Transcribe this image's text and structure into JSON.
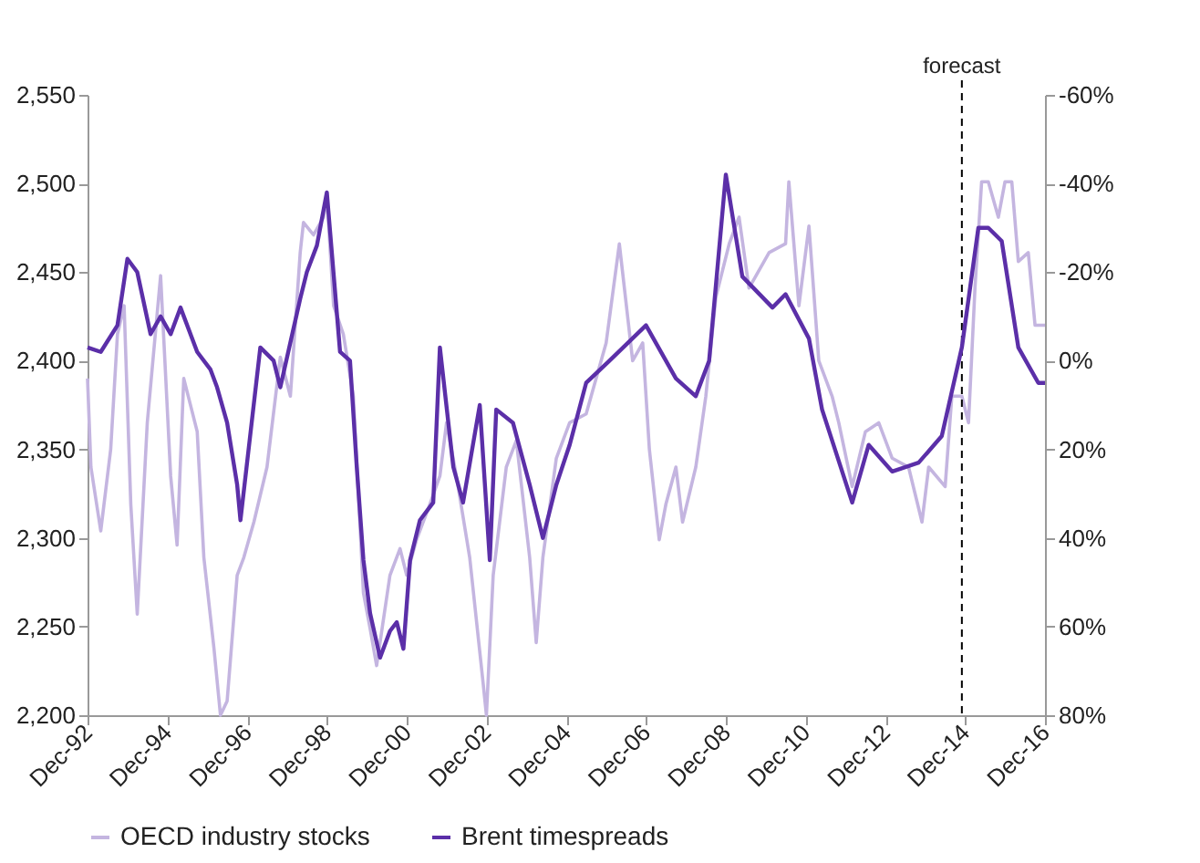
{
  "chart_data": {
    "type": "line",
    "xlim": [
      "1992-12",
      "2016-12"
    ],
    "xticks": [
      {
        "value": "1992-12",
        "label": "Dec-92"
      },
      {
        "value": "1994-12",
        "label": "Dec-94"
      },
      {
        "value": "1996-12",
        "label": "Dec-96"
      },
      {
        "value": "1998-12",
        "label": "Dec-98"
      },
      {
        "value": "2000-12",
        "label": "Dec-00"
      },
      {
        "value": "2002-12",
        "label": "Dec-02"
      },
      {
        "value": "2004-12",
        "label": "Dec-04"
      },
      {
        "value": "2006-12",
        "label": "Dec-06"
      },
      {
        "value": "2008-12",
        "label": "Dec-08"
      },
      {
        "value": "2010-12",
        "label": "Dec-10"
      },
      {
        "value": "2012-12",
        "label": "Dec-12"
      },
      {
        "value": "2014-12",
        "label": "Dec-14"
      },
      {
        "value": "2016-12",
        "label": "Dec-16"
      }
    ],
    "ylim": [
      2200,
      2550
    ],
    "yticks": [
      {
        "value": 2200,
        "label": "2,200"
      },
      {
        "value": 2250,
        "label": "2,250"
      },
      {
        "value": 2300,
        "label": "2,300"
      },
      {
        "value": 2350,
        "label": "2,350"
      },
      {
        "value": 2400,
        "label": "2,400"
      },
      {
        "value": 2450,
        "label": "2,450"
      },
      {
        "value": 2500,
        "label": "2,500"
      },
      {
        "value": 2550,
        "label": "2,550"
      }
    ],
    "y2lim": [
      80,
      -60
    ],
    "y2ticks": [
      {
        "value": -60,
        "label": "-60%"
      },
      {
        "value": -40,
        "label": "-40%"
      },
      {
        "value": -20,
        "label": "-20%"
      },
      {
        "value": 0,
        "label": "0%"
      },
      {
        "value": 20,
        "label": "20%"
      },
      {
        "value": 40,
        "label": "40%"
      },
      {
        "value": 60,
        "label": "60%"
      },
      {
        "value": 80,
        "label": "80%"
      }
    ],
    "grid": false,
    "legend": "bottom",
    "marker": "none",
    "line_style": "solid",
    "ref_lines": [
      {
        "axis": "x",
        "value": "2014-11",
        "label": "forecast",
        "color": "#000000",
        "line_style": "dashed"
      }
    ],
    "series": [
      {
        "name": "OECD industry stocks",
        "color": "#c4b5e0",
        "x": [
          "1992-12",
          "1993-01",
          "1993-04",
          "1993-07",
          "1993-09",
          "1993-11",
          "1994-01",
          "1994-03",
          "1994-06",
          "1994-10",
          "1995-01",
          "1995-03",
          "1995-05",
          "1995-09",
          "1995-11",
          "1996-02",
          "1996-04",
          "1996-06",
          "1996-09",
          "1996-11",
          "1997-02",
          "1997-06",
          "1997-10",
          "1998-01",
          "1998-04",
          "1998-05",
          "1998-08",
          "1998-11",
          "1998-12",
          "1999-02",
          "1999-05",
          "1999-08",
          "1999-11",
          "2000-01",
          "2000-03",
          "2000-07",
          "2000-10",
          "2000-12",
          "2001-03",
          "2001-07",
          "2001-10",
          "2001-12",
          "2002-03",
          "2002-07",
          "2002-11",
          "2002-12",
          "2003-02",
          "2003-06",
          "2003-09",
          "2004-01",
          "2004-03",
          "2004-05",
          "2004-09",
          "2005-01",
          "2005-06",
          "2005-12",
          "2006-04",
          "2006-08",
          "2006-11",
          "2007-01",
          "2007-04",
          "2007-06",
          "2007-09",
          "2007-11",
          "2008-03",
          "2008-06",
          "2008-09",
          "2009-01",
          "2009-04",
          "2009-07",
          "2010-01",
          "2010-06",
          "2010-07",
          "2010-10",
          "2011-01",
          "2011-04",
          "2011-08",
          "2011-10",
          "2012-02",
          "2012-06",
          "2012-10",
          "2013-02",
          "2013-07",
          "2013-11",
          "2014-01",
          "2014-06",
          "2014-08",
          "2014-11",
          "2015-01",
          "2015-03",
          "2015-05",
          "2015-07",
          "2015-10",
          "2015-12",
          "2016-02",
          "2016-04",
          "2016-07",
          "2016-09",
          "2016-12"
        ],
        "values": [
          2390,
          2340,
          2304,
          2350,
          2415,
          2431,
          2319,
          2257,
          2365,
          2448,
          2335,
          2296,
          2390,
          2360,
          2289,
          2238,
          2200,
          2208,
          2279,
          2289,
          2309,
          2340,
          2402,
          2380,
          2461,
          2478,
          2471,
          2481,
          2493,
          2431,
          2415,
          2380,
          2269,
          2249,
          2228,
          2279,
          2294,
          2279,
          2299,
          2319,
          2335,
          2365,
          2335,
          2289,
          2218,
          2200,
          2279,
          2340,
          2355,
          2289,
          2241,
          2289,
          2345,
          2365,
          2370,
          2410,
          2466,
          2400,
          2410,
          2350,
          2299,
          2319,
          2340,
          2309,
          2340,
          2380,
          2436,
          2466,
          2481,
          2441,
          2461,
          2466,
          2501,
          2431,
          2476,
          2400,
          2380,
          2365,
          2329,
          2360,
          2365,
          2345,
          2340,
          2309,
          2340,
          2329,
          2380,
          2380,
          2365,
          2441,
          2501,
          2501,
          2481,
          2501,
          2501,
          2456,
          2461,
          2420,
          2420
        ]
      },
      {
        "name": "Brent timespreads",
        "color": "#5b2fa8",
        "axis": "y2",
        "x": [
          "1992-12",
          "1993-04",
          "1993-09",
          "1993-12",
          "1994-03",
          "1994-07",
          "1994-10",
          "1995-01",
          "1995-04",
          "1995-09",
          "1996-01",
          "1996-03",
          "1996-06",
          "1996-09",
          "1996-10",
          "1997-04",
          "1997-08",
          "1997-10",
          "1998-04",
          "1998-06",
          "1998-09",
          "1998-12",
          "1999-04",
          "1999-07",
          "1999-09",
          "1999-11",
          "2000-01",
          "2000-04",
          "2000-07",
          "2000-09",
          "2000-11",
          "2001-01",
          "2001-04",
          "2001-08",
          "2001-10",
          "2002-02",
          "2002-05",
          "2002-10",
          "2003-01",
          "2003-03",
          "2003-08",
          "2004-01",
          "2004-05",
          "2004-09",
          "2005-01",
          "2005-06",
          "2006-01",
          "2006-12",
          "2007-09",
          "2008-03",
          "2008-07",
          "2008-12",
          "2009-05",
          "2010-02",
          "2010-06",
          "2011-01",
          "2011-05",
          "2012-02",
          "2012-07",
          "2013-02",
          "2013-10",
          "2014-05",
          "2014-11",
          "2015-04",
          "2015-07",
          "2015-11",
          "2016-04",
          "2016-10",
          "2016-12"
        ],
        "values": [
          -3,
          -2,
          -8,
          -23,
          -20,
          -6,
          -10,
          -6,
          -12,
          -2,
          2,
          6,
          14,
          28,
          36,
          -3,
          0,
          6,
          -14,
          -20,
          -26,
          -38,
          -2,
          0,
          24,
          45,
          57,
          67,
          61,
          59,
          65,
          45,
          36,
          32,
          -3,
          24,
          32,
          10,
          45,
          11,
          14,
          28,
          40,
          28,
          19,
          5,
          0,
          -8,
          4,
          8,
          0,
          -42,
          -19,
          -12,
          -15,
          -5,
          11,
          32,
          19,
          25,
          23,
          17,
          -3,
          -30,
          -30,
          -27,
          -3,
          5,
          5
        ]
      }
    ]
  }
}
